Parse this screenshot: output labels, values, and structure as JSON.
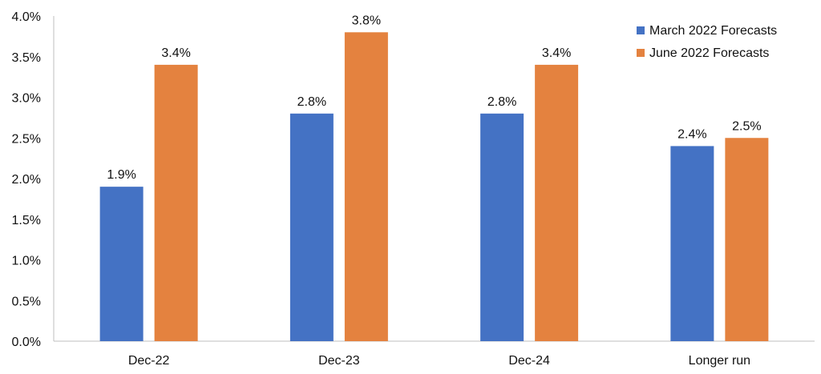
{
  "chart_data": {
    "type": "bar",
    "categories": [
      "Dec-22",
      "Dec-23",
      "Dec-24",
      "Longer run"
    ],
    "series": [
      {
        "name": "March 2022 Forecasts",
        "values": [
          1.9,
          2.8,
          2.8,
          2.4
        ],
        "color": "#4472C4"
      },
      {
        "name": "June 2022 Forecasts",
        "values": [
          3.4,
          3.8,
          3.4,
          2.5
        ],
        "color": "#E4823F"
      }
    ],
    "data_labels": [
      [
        "1.9%",
        "2.8%",
        "2.8%",
        "2.4%"
      ],
      [
        "3.4%",
        "3.8%",
        "3.4%",
        "2.5%"
      ]
    ],
    "y_ticks": [
      "0.0%",
      "0.5%",
      "1.0%",
      "1.5%",
      "2.0%",
      "2.5%",
      "3.0%",
      "3.5%",
      "4.0%"
    ],
    "ylim": [
      0,
      4.0
    ],
    "title": "",
    "xlabel": "",
    "ylabel": "",
    "grid": false,
    "legend_position": "top-right"
  }
}
